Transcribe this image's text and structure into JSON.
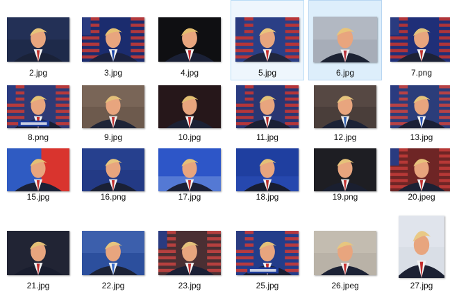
{
  "files": [
    {
      "name": "2.jpg",
      "bg": "#1e2a4a",
      "accent": "#2d3d6e",
      "suit": "#1a2238",
      "tie": "#c0302c",
      "hair": "#e6c37a",
      "type": "crowd"
    },
    {
      "name": "3.jpg",
      "bg": "#1b2c6e",
      "accent": "#c23a36",
      "suit": "#1b2240",
      "tie": "#1e47a8",
      "hair": "#e5c072",
      "type": "flag"
    },
    {
      "name": "4.jpg",
      "bg": "#0b0b0d",
      "accent": "#1d1d24",
      "suit": "#1a2036",
      "tie": "#c3262c",
      "hair": "#e3bd6f",
      "type": "dark"
    },
    {
      "name": "5.jpg",
      "bg": "#2b3f86",
      "accent": "#c73430",
      "suit": "#20263d",
      "tie": "#c52f2f",
      "hair": "#e9c47c",
      "type": "flag"
    },
    {
      "name": "6.jpg",
      "bg": "#a7adb8",
      "accent": "#c9cdd4",
      "suit": "#1c2233",
      "tie": "#b5313b",
      "hair": "#e8c47a",
      "type": "plain"
    },
    {
      "name": "7.png",
      "bg": "#1f2f78",
      "accent": "#bf3532",
      "suit": "#1d2236",
      "tie": "#c0332f",
      "hair": "#e2c37d",
      "type": "flag"
    },
    {
      "name": "8.png",
      "bg": "#2f3a75",
      "accent": "#c73b36",
      "suit": "#1a1f33",
      "tie": "#c02a2a",
      "hair": "#e5c175",
      "type": "podium"
    },
    {
      "name": "9.jpg",
      "bg": "#6d5a4d",
      "accent": "#8f7b6a",
      "suit": "#1e2437",
      "tie": "#c13232",
      "hair": "#e4c07a",
      "type": "plain"
    },
    {
      "name": "10.jpg",
      "bg": "#141418",
      "accent": "#5d2021",
      "suit": "#1c2134",
      "tie": "#c32c2c",
      "hair": "#e2be72",
      "type": "dark"
    },
    {
      "name": "11.jpg",
      "bg": "#2a3672",
      "accent": "#c43634",
      "suit": "#1b2035",
      "tie": "#b52e2e",
      "hair": "#e3c178",
      "type": "flag"
    },
    {
      "name": "12.jpg",
      "bg": "#4a3e3a",
      "accent": "#6d5c55",
      "suit": "#1c2236",
      "tie": "#2e5fb0",
      "hair": "#e6c47d",
      "type": "plain"
    },
    {
      "name": "13.jpg",
      "bg": "#2b3d7a",
      "accent": "#c54240",
      "suit": "#1b2035",
      "tie": "#2f58b8",
      "hair": "#e5c37a",
      "type": "flag"
    },
    {
      "name": "15.jpg",
      "bg": "#2f5bc2",
      "accent": "#d9342e",
      "suit": "#1b2136",
      "tie": "#c52c2c",
      "hair": "#e4bf76",
      "type": "split"
    },
    {
      "name": "16.png",
      "bg": "#233a85",
      "accent": "#2f4da0",
      "suit": "#1a2035",
      "tie": "#c13030",
      "hair": "#e7c57e",
      "type": "plain"
    },
    {
      "name": "17.jpg",
      "bg": "#2d56c8",
      "accent": "#7b9be0",
      "suit": "#1b2036",
      "tie": "#c42f2f",
      "hair": "#e5c078",
      "type": "stage"
    },
    {
      "name": "18.jpg",
      "bg": "#1f3fa0",
      "accent": "#2e52bb",
      "suit": "#181d30",
      "tie": "#b8302f",
      "hair": "#e4c077",
      "type": "stage"
    },
    {
      "name": "19.png",
      "bg": "#1a1a1e",
      "accent": "#2d2d33",
      "suit": "#1a1f30",
      "tie": "#bf2f2f",
      "hair": "#e6c27a",
      "type": "dark"
    },
    {
      "name": "20.jpeg",
      "bg": "#6e2525",
      "accent": "#bf3b38",
      "suit": "#1c2134",
      "tie": "#c12f2f",
      "hair": "#e6c27b",
      "type": "flag"
    },
    {
      "name": "21.jpg",
      "bg": "#1a1c2a",
      "accent": "#363a52",
      "suit": "#191d2e",
      "tie": "#c02c2c",
      "hair": "#e3bf75",
      "type": "dark"
    },
    {
      "name": "22.jpg",
      "bg": "#2c4f9d",
      "accent": "#5b7dc8",
      "suit": "#1c2236",
      "tie": "#3b6cc9",
      "hair": "#e6c47e",
      "type": "plain"
    },
    {
      "name": "23.jpg",
      "bg": "#4a2f33",
      "accent": "#c14240",
      "suit": "#1b2035",
      "tie": "#c23030",
      "hair": "#e4c07a",
      "type": "flag"
    },
    {
      "name": "25.jpg",
      "bg": "#233d8a",
      "accent": "#c83a36",
      "suit": "#1a1f33",
      "tie": "#c52c2c",
      "hair": "#e5c178",
      "type": "podium"
    },
    {
      "name": "26.jpeg",
      "bg": "#b9b2a7",
      "accent": "#d6cfc4",
      "suit": "#1c2235",
      "tie": "#c33131",
      "hair": "#e7c67f",
      "type": "plain"
    },
    {
      "name": "27.jpg",
      "bg": "#d9dee6",
      "accent": "#eef1f5",
      "suit": "#1c2133",
      "tie": "#c22c2c",
      "hair": "#e9c986",
      "type": "portrait"
    }
  ]
}
